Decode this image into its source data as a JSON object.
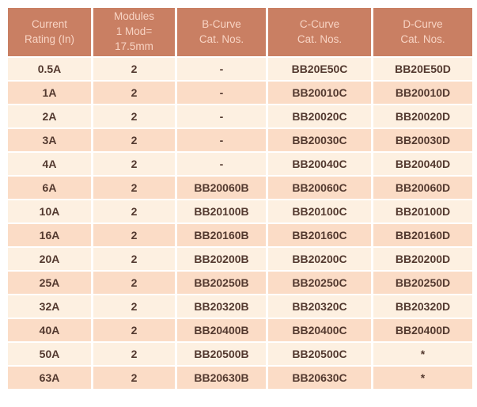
{
  "colors": {
    "header_bg": "#c97f63",
    "header_text": "#f8d4c4",
    "row_light": "#fdf0e1",
    "row_dark": "#fbdcc6",
    "cell_text": "#53392f"
  },
  "table": {
    "columns": [
      "Current\nRating (In)",
      "Modules\n1 Mod=\n17.5mm",
      "B-Curve\nCat. Nos.",
      "C-Curve\nCat. Nos.",
      "D-Curve\nCat. Nos."
    ],
    "rows": [
      [
        "0.5A",
        "2",
        "-",
        "BB20E50C",
        "BB20E50D"
      ],
      [
        "1A",
        "2",
        "-",
        "BB20010C",
        "BB20010D"
      ],
      [
        "2A",
        "2",
        "-",
        "BB20020C",
        "BB20020D"
      ],
      [
        "3A",
        "2",
        "-",
        "BB20030C",
        "BB20030D"
      ],
      [
        "4A",
        "2",
        "-",
        "BB20040C",
        "BB20040D"
      ],
      [
        "6A",
        "2",
        "BB20060B",
        "BB20060C",
        "BB20060D"
      ],
      [
        "10A",
        "2",
        "BB20100B",
        "BB20100C",
        "BB20100D"
      ],
      [
        "16A",
        "2",
        "BB20160B",
        "BB20160C",
        "BB20160D"
      ],
      [
        "20A",
        "2",
        "BB20200B",
        "BB20200C",
        "BB20200D"
      ],
      [
        "25A",
        "2",
        "BB20250B",
        "BB20250C",
        "BB20250D"
      ],
      [
        "32A",
        "2",
        "BB20320B",
        "BB20320C",
        "BB20320D"
      ],
      [
        "40A",
        "2",
        "BB20400B",
        "BB20400C",
        "BB20400D"
      ],
      [
        "50A",
        "2",
        "BB20500B",
        "BB20500C",
        "*"
      ],
      [
        "63A",
        "2",
        "BB20630B",
        "BB20630C",
        "*"
      ]
    ]
  }
}
